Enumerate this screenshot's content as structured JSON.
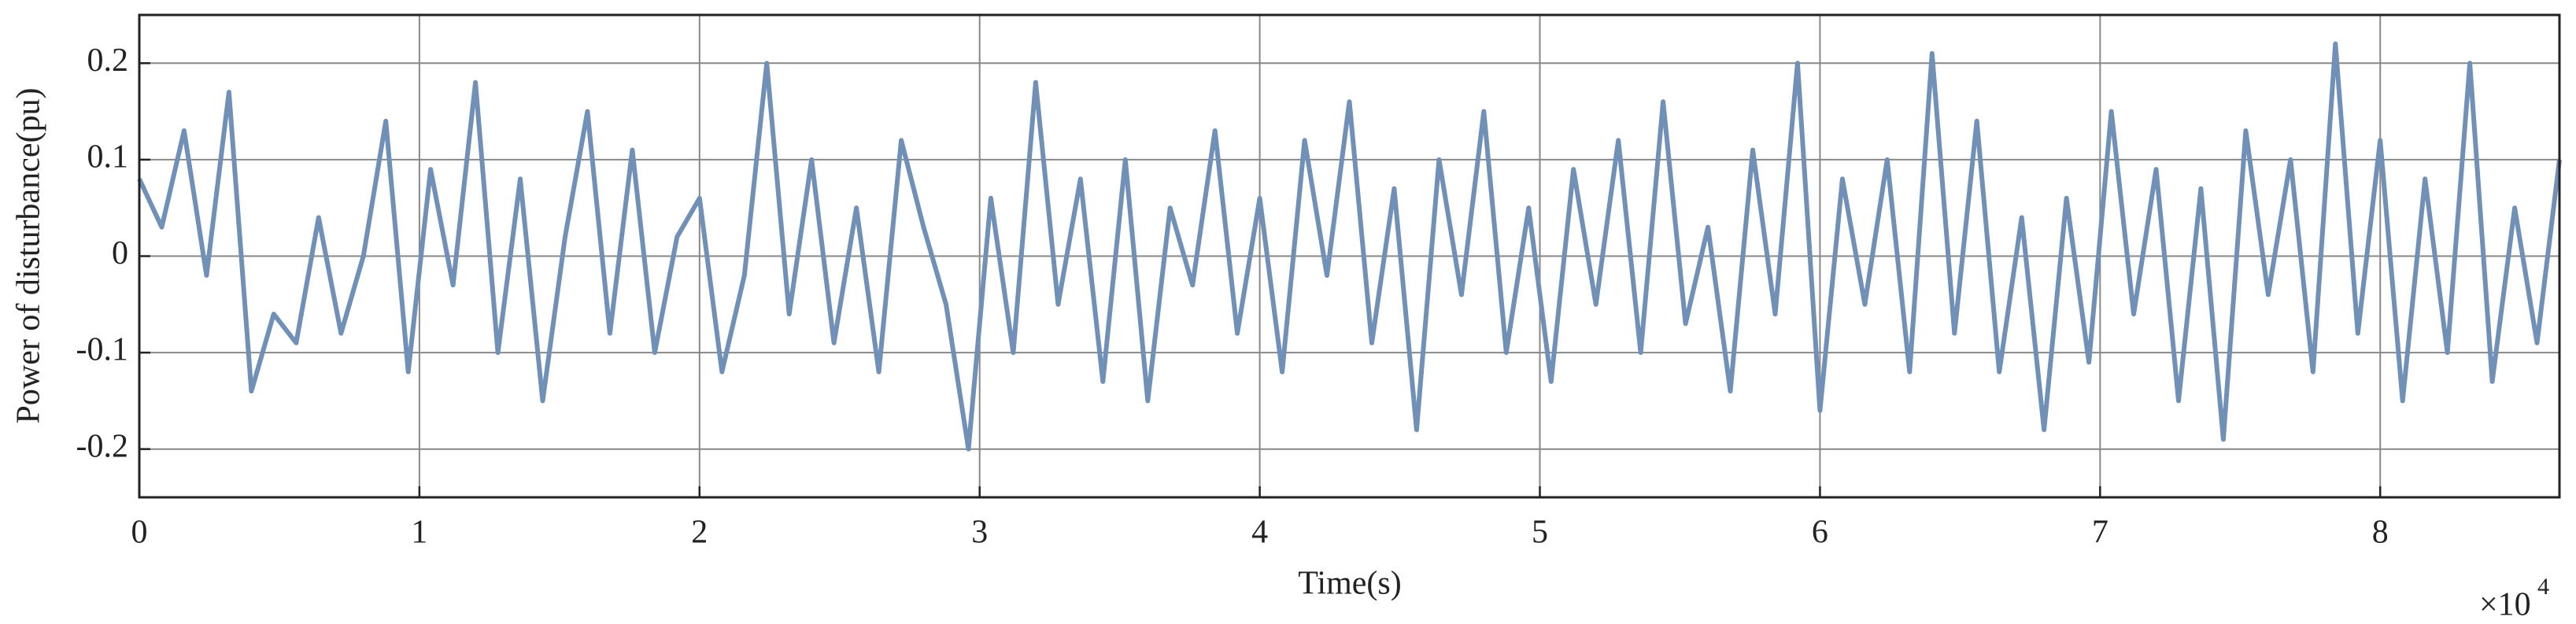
{
  "chart_data": {
    "type": "line",
    "x_label": "Time(s)",
    "y_label": "Power of disturbance(pu)",
    "x_multiplier": "×10",
    "x_exponent": "4",
    "color": "#7090b8",
    "grid": true,
    "xlim": [
      0,
      86400
    ],
    "ylim": [
      -0.25,
      0.25
    ],
    "xticks": [
      0,
      {
        "value": 10000,
        "label": "1"
      },
      {
        "value": 20000,
        "label": "2"
      },
      {
        "value": 30000,
        "label": "3"
      },
      {
        "value": 40000,
        "label": "4"
      },
      {
        "value": 50000,
        "label": "5"
      },
      {
        "value": 60000,
        "label": "6"
      },
      {
        "value": 70000,
        "label": "7"
      },
      {
        "value": 80000,
        "label": "8"
      }
    ],
    "yticks": [
      -0.2,
      -0.1,
      0,
      0.1,
      0.2
    ],
    "x": [
      0,
      800,
      1600,
      2400,
      3200,
      4000,
      4800,
      5600,
      6400,
      7200,
      8000,
      8800,
      9600,
      10400,
      11200,
      12000,
      12800,
      13600,
      14400,
      15200,
      16000,
      16800,
      17600,
      18400,
      19200,
      20000,
      20800,
      21600,
      22400,
      23200,
      24000,
      24800,
      25600,
      26400,
      27200,
      28000,
      28800,
      29600,
      30400,
      31200,
      32000,
      32800,
      33600,
      34400,
      35200,
      36000,
      36800,
      37600,
      38400,
      39200,
      40000,
      40800,
      41600,
      42400,
      43200,
      44000,
      44800,
      45600,
      46400,
      47200,
      48000,
      48800,
      49600,
      50400,
      51200,
      52000,
      52800,
      53600,
      54400,
      55200,
      56000,
      56800,
      57600,
      58400,
      59200,
      60000,
      60800,
      61600,
      62400,
      63200,
      64000,
      64800,
      65600,
      66400,
      67200,
      68000,
      68800,
      69600,
      70400,
      71200,
      72000,
      72800,
      73600,
      74400,
      75200,
      76000,
      76800,
      77600,
      78400,
      79200,
      80000,
      80800,
      81600,
      82400,
      83200,
      84000,
      84800,
      85600,
      86400
    ],
    "values": [
      0.08,
      0.03,
      0.13,
      -0.02,
      0.17,
      -0.14,
      -0.06,
      -0.09,
      0.04,
      -0.08,
      0.0,
      0.14,
      -0.12,
      0.09,
      -0.03,
      0.18,
      -0.1,
      0.08,
      -0.15,
      0.02,
      0.15,
      -0.08,
      0.11,
      -0.1,
      0.02,
      0.06,
      -0.12,
      -0.02,
      0.2,
      -0.06,
      0.1,
      -0.09,
      0.05,
      -0.12,
      0.12,
      0.03,
      -0.05,
      -0.2,
      0.06,
      -0.1,
      0.18,
      -0.05,
      0.08,
      -0.13,
      0.1,
      -0.15,
      0.05,
      -0.03,
      0.13,
      -0.08,
      0.06,
      -0.12,
      0.12,
      -0.02,
      0.16,
      -0.09,
      0.07,
      -0.18,
      0.1,
      -0.04,
      0.15,
      -0.1,
      0.05,
      -0.13,
      0.09,
      -0.05,
      0.12,
      -0.1,
      0.16,
      -0.07,
      0.03,
      -0.14,
      0.11,
      -0.06,
      0.2,
      -0.16,
      0.08,
      -0.05,
      0.1,
      -0.12,
      0.21,
      -0.08,
      0.14,
      -0.12,
      0.04,
      -0.18,
      0.06,
      -0.11,
      0.15,
      -0.06,
      0.09,
      -0.15,
      0.07,
      -0.19,
      0.13,
      -0.04,
      0.1,
      -0.12,
      0.22,
      -0.08,
      0.12,
      -0.15,
      0.08,
      -0.1,
      0.2,
      -0.13,
      0.05,
      -0.09,
      0.1
    ]
  }
}
